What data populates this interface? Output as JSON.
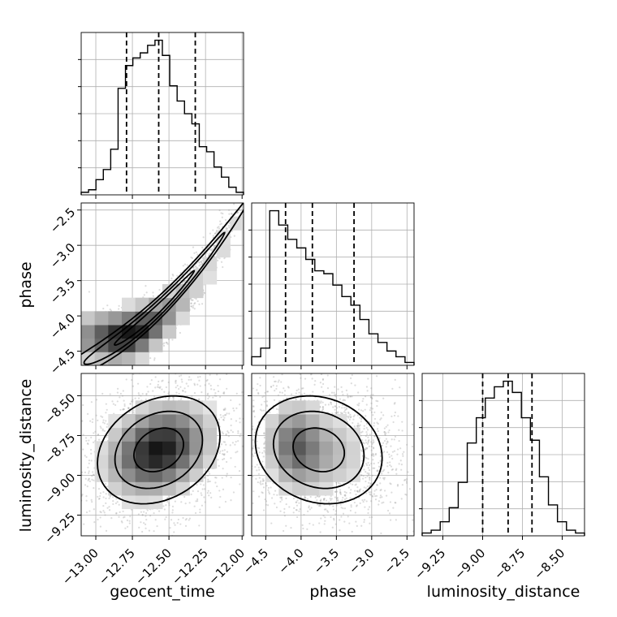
{
  "chart_data": {
    "type": "corner",
    "parameters": [
      "geocent_time",
      "phase",
      "luminosity_distance"
    ],
    "ranges": {
      "geocent_time": [
        -13.1,
        -11.99
      ],
      "phase": [
        -4.7,
        -2.4
      ],
      "luminosity_distance": [
        -9.38,
        -8.36
      ]
    },
    "ticks": {
      "geocent_time": [
        "−13.00",
        "−12.75",
        "−12.50",
        "−12.25",
        "−12.00"
      ],
      "phase": [
        "−4.5",
        "−4.0",
        "−3.5",
        "−3.0",
        "−2.5"
      ],
      "luminosity_distance": [
        "−9.25",
        "−9.00",
        "−8.75",
        "−8.50"
      ]
    },
    "tick_values": {
      "geocent_time": [
        -13.0,
        -12.75,
        -12.5,
        -12.25,
        -12.0
      ],
      "phase": [
        -4.5,
        -4.0,
        -3.5,
        -3.0,
        -2.5
      ],
      "luminosity_distance": [
        -9.25,
        -9.0,
        -8.75,
        -8.5
      ]
    },
    "quantiles": {
      "geocent_time": [
        -12.79,
        -12.57,
        -12.32
      ],
      "phase": [
        -4.22,
        -3.84,
        -3.25
      ],
      "luminosity_distance": [
        -9.0,
        -8.84,
        -8.69
      ]
    },
    "marginals": {
      "geocent_time": [
        1,
        2,
        6,
        10,
        18,
        42,
        51,
        54,
        56,
        59,
        61,
        55,
        43,
        37,
        32,
        28,
        19,
        17,
        11,
        7,
        3,
        1
      ],
      "phase": [
        3,
        6,
        54,
        49,
        44,
        41,
        37,
        33,
        32,
        28,
        24,
        21,
        16,
        11,
        8,
        5,
        3,
        1
      ],
      "luminosity_distance": [
        1,
        2,
        5,
        10,
        19,
        33,
        42,
        49,
        53,
        55,
        51,
        42,
        34,
        21,
        11,
        5,
        2,
        1
      ]
    },
    "grid": true,
    "color": "#000000"
  }
}
